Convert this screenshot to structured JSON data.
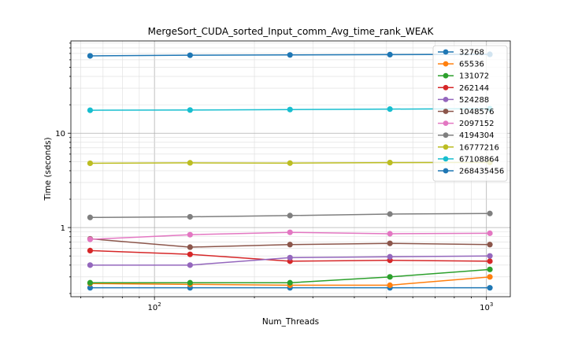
{
  "chart_data": {
    "type": "line",
    "title": "MergeSort_CUDA_sorted_Input_comm_Avg_time_rank_WEAK",
    "xlabel": "Num_Threads",
    "ylabel": "Time (seconds)",
    "xscale": "log",
    "yscale": "log",
    "xlim": [
      56,
      1180
    ],
    "ylim": [
      0.185,
      95
    ],
    "x_ticks": [
      {
        "value": 100,
        "base": "10",
        "exp": "2"
      },
      {
        "value": 1000,
        "base": "10",
        "exp": "3"
      }
    ],
    "y_ticks": [
      {
        "value": 1,
        "label": "1"
      },
      {
        "value": 10,
        "label": "10"
      }
    ],
    "grid": "on (major and minor)",
    "legend_position": "top-right",
    "x": [
      64,
      128,
      256,
      512,
      1024
    ],
    "series": [
      {
        "name": "32768",
        "color": "#1f77b4",
        "values": [
          0.23,
          0.23,
          0.23,
          0.23,
          0.23
        ]
      },
      {
        "name": "65536",
        "color": "#ff7f0e",
        "values": [
          0.255,
          0.25,
          0.245,
          0.245,
          0.3
        ]
      },
      {
        "name": "131072",
        "color": "#2ca02c",
        "values": [
          0.26,
          0.26,
          0.26,
          0.3,
          0.36
        ]
      },
      {
        "name": "262144",
        "color": "#d62728",
        "values": [
          0.57,
          0.52,
          0.44,
          0.45,
          0.44
        ]
      },
      {
        "name": "524288",
        "color": "#9467bd",
        "values": [
          0.4,
          0.4,
          0.48,
          0.49,
          0.5
        ]
      },
      {
        "name": "1048576",
        "color": "#8c564b",
        "values": [
          0.76,
          0.62,
          0.66,
          0.68,
          0.66
        ]
      },
      {
        "name": "2097152",
        "color": "#e377c2",
        "values": [
          0.75,
          0.84,
          0.89,
          0.86,
          0.87
        ]
      },
      {
        "name": "4194304",
        "color": "#7f7f7f",
        "values": [
          1.28,
          1.3,
          1.34,
          1.39,
          1.41
        ]
      },
      {
        "name": "16777216",
        "color": "#bcbd22",
        "values": [
          4.8,
          4.85,
          4.82,
          4.88,
          4.9
        ]
      },
      {
        "name": "67108864",
        "color": "#17becf",
        "values": [
          17.5,
          17.6,
          17.8,
          18.0,
          18.2
        ]
      },
      {
        "name": "268435456",
        "color": "#1f77b4",
        "values": [
          66,
          67,
          67.5,
          68,
          68.5
        ]
      }
    ]
  }
}
